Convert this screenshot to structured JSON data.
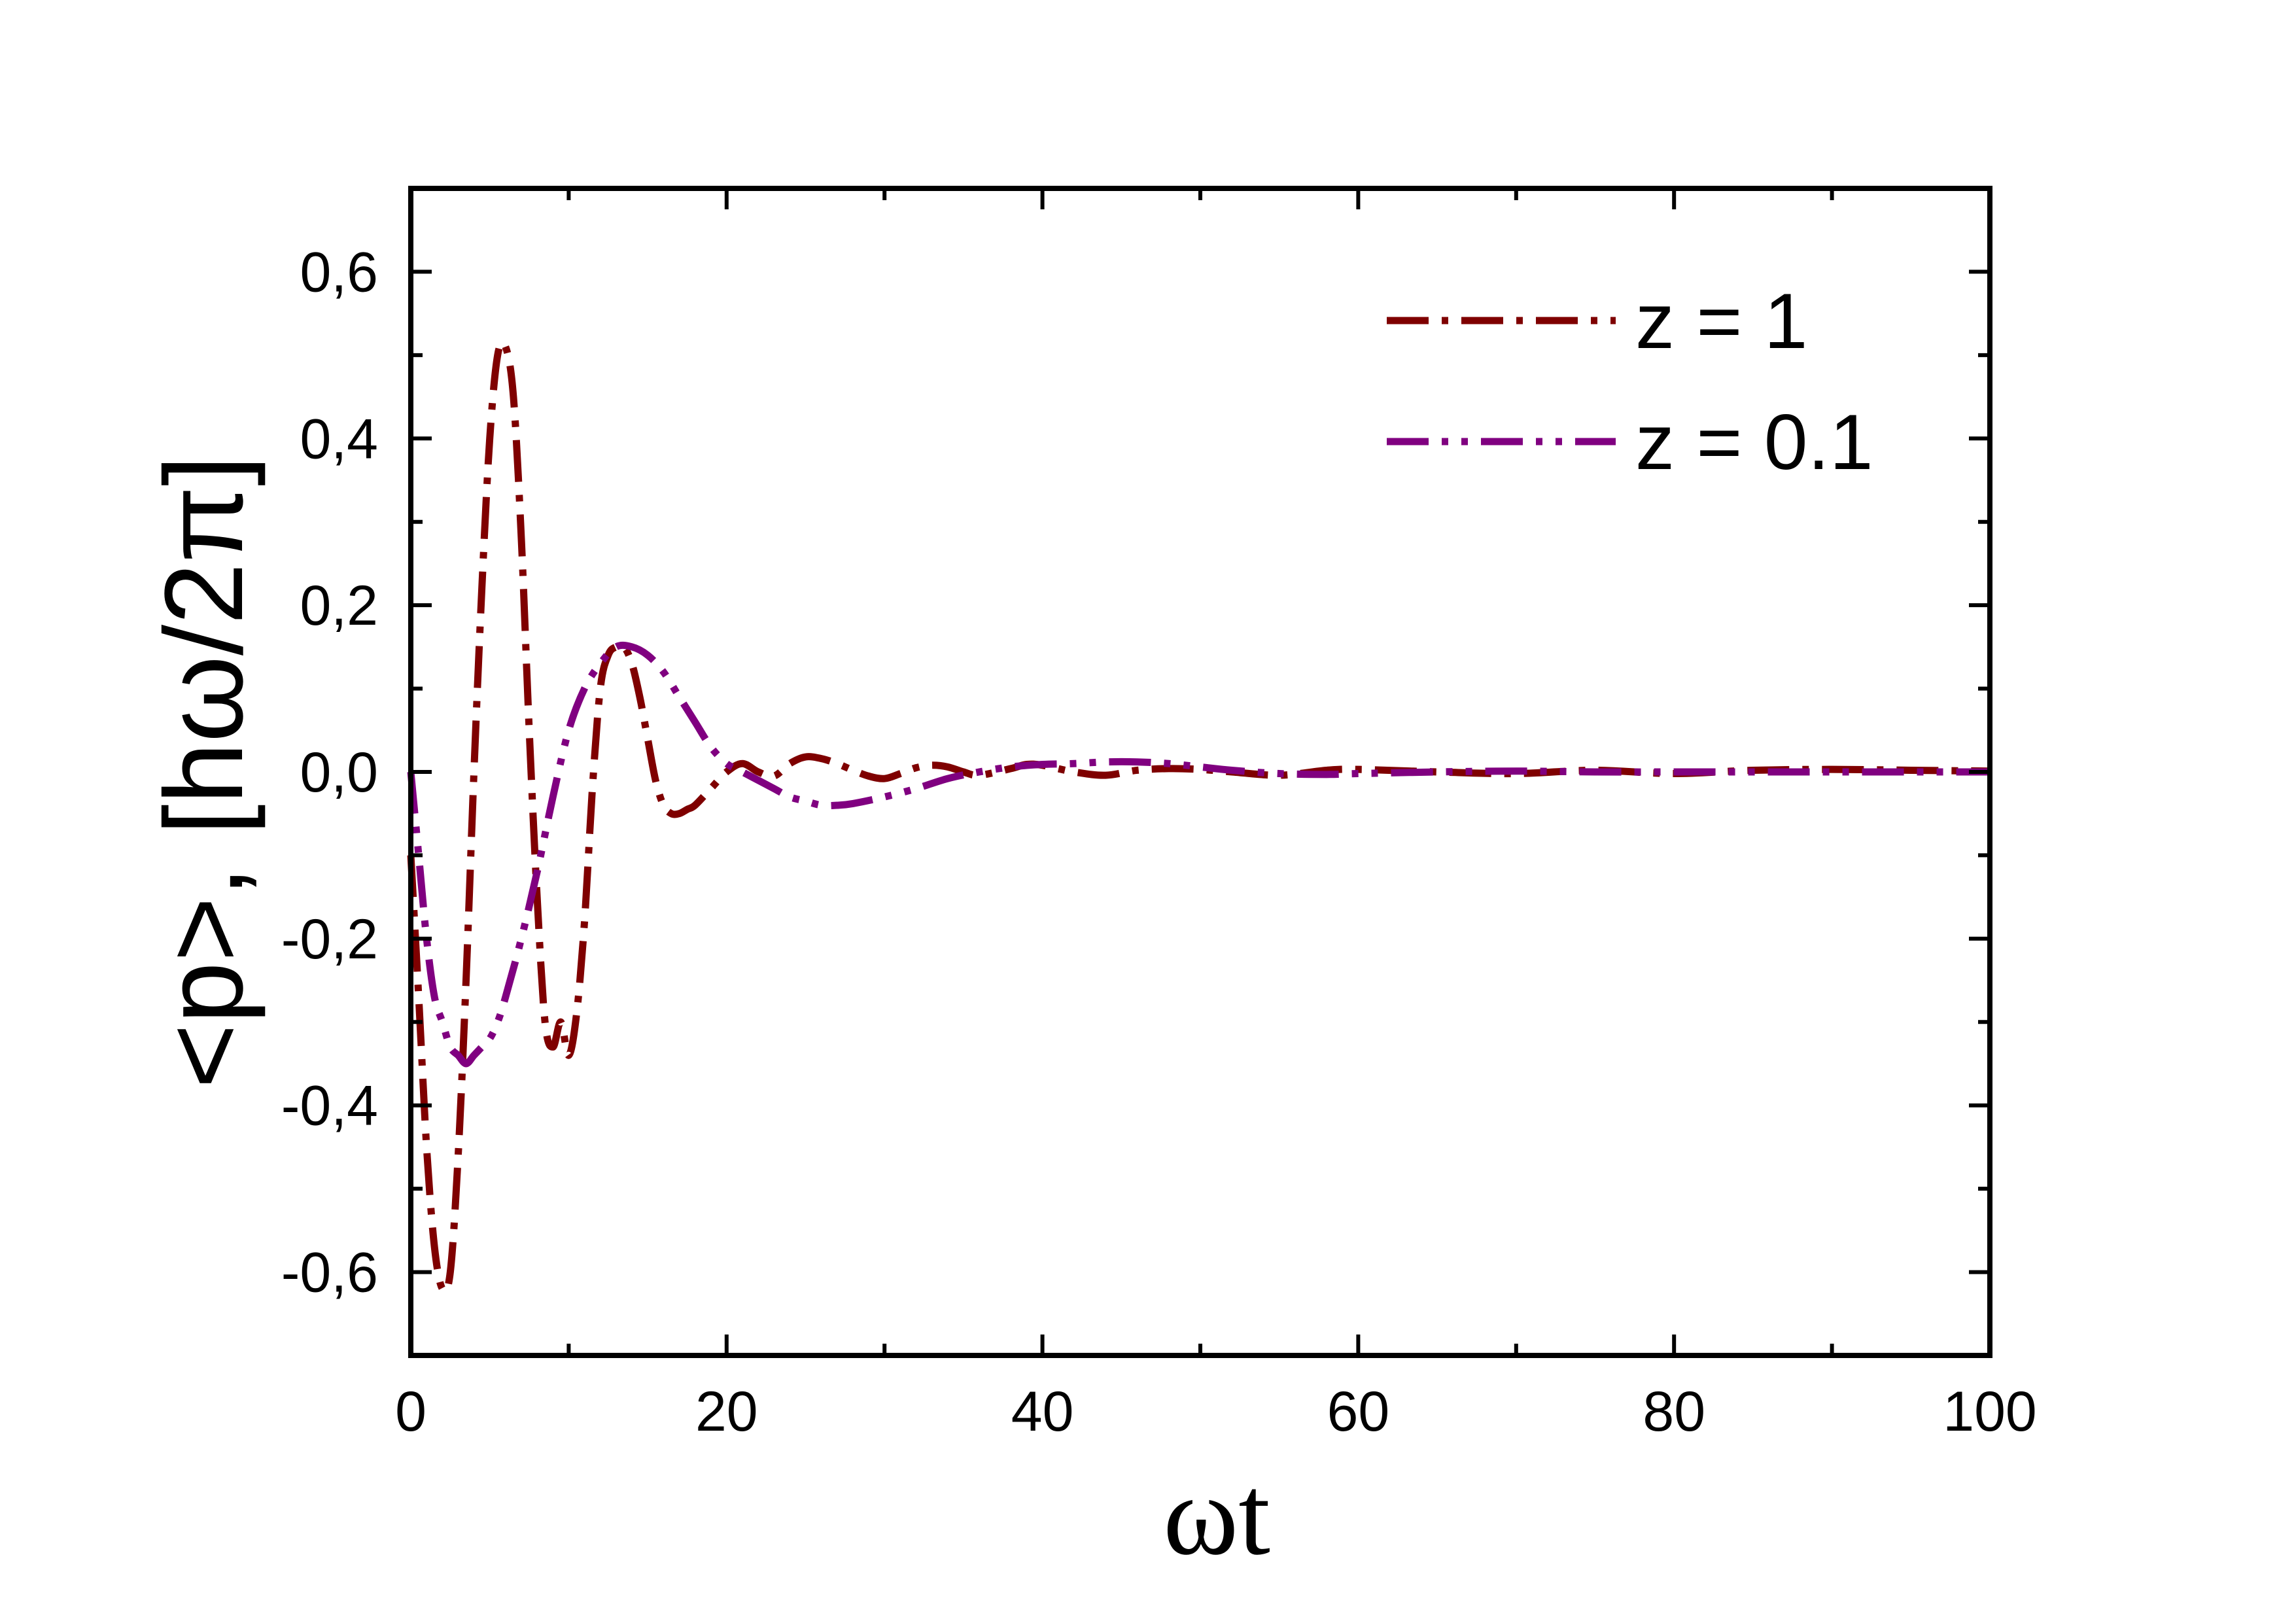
{
  "colors": {
    "series_1": "#7f0000",
    "series_2": "#800080",
    "axes": "#000000",
    "background": "#ffffff"
  },
  "chart_data": {
    "type": "line",
    "title": "",
    "xlabel": "ωt",
    "ylabel": "<p>, [hω/2π]",
    "xlim": [
      0,
      100
    ],
    "ylim": [
      -0.7,
      0.7
    ],
    "x_ticks": [
      0,
      20,
      40,
      60,
      80,
      100
    ],
    "x_tick_labels": [
      "0",
      "20",
      "40",
      "60",
      "80",
      "100"
    ],
    "y_ticks": [
      -0.6,
      -0.4,
      -0.2,
      0.0,
      0.2,
      0.4,
      0.6
    ],
    "y_tick_labels": [
      "-0,6",
      "-0,4",
      "-0,2",
      "0,0",
      "0,2",
      "0,4",
      "0,6"
    ],
    "grid": false,
    "legend_position": "top-right",
    "series": [
      {
        "name": "z = 1",
        "line_style": "dash-dot",
        "color": "#7f0000",
        "x": [
          0,
          0.5,
          1,
          1.5,
          2,
          2.5,
          3,
          3.5,
          4,
          4.5,
          5,
          5.5,
          6,
          6.5,
          7,
          7.5,
          8,
          8.5,
          9,
          9.5,
          10,
          10.5,
          11,
          11.5,
          12,
          12.5,
          13,
          13.5,
          14,
          14.5,
          15,
          15.5,
          16,
          16.5,
          17,
          17.5,
          18,
          19,
          20,
          21,
          22,
          23,
          24,
          25,
          26,
          27,
          28,
          29,
          30,
          31,
          32,
          33,
          34,
          35,
          36,
          38,
          39,
          40,
          42,
          44,
          46,
          48,
          50,
          52,
          55,
          58,
          60,
          65,
          70,
          75,
          80,
          85,
          90,
          95,
          100
        ],
        "y": [
          -0.1,
          -0.27,
          -0.45,
          -0.57,
          -0.62,
          -0.6,
          -0.46,
          -0.25,
          0.0,
          0.22,
          0.4,
          0.5,
          0.51,
          0.45,
          0.28,
          0.05,
          -0.15,
          -0.3,
          -0.33,
          -0.3,
          -0.34,
          -0.29,
          -0.18,
          -0.02,
          0.1,
          0.14,
          0.15,
          0.15,
          0.13,
          0.09,
          0.04,
          -0.01,
          -0.04,
          -0.05,
          -0.05,
          -0.045,
          -0.04,
          -0.02,
          0.0,
          0.01,
          0.0,
          -0.005,
          0.01,
          0.018,
          0.016,
          0.01,
          0.002,
          -0.005,
          -0.008,
          -0.002,
          0.005,
          0.008,
          0.006,
          0.0,
          -0.004,
          0.004,
          0.009,
          0.008,
          0.0,
          -0.004,
          0.002,
          0.004,
          0.003,
          0.0,
          -0.004,
          0.002,
          0.003,
          0.0,
          -0.002,
          0.002,
          -0.002,
          0.002,
          0.003,
          0.002,
          0.001
        ]
      },
      {
        "name": "z = 0.1",
        "line_style": "dash-dot-dot",
        "color": "#800080",
        "x": [
          0,
          0.5,
          1,
          1.5,
          2,
          2.5,
          3,
          3.5,
          4,
          4.5,
          5,
          5.5,
          6,
          7,
          8,
          9,
          10,
          11,
          12,
          13,
          14,
          15,
          16,
          17,
          18,
          19,
          20,
          21,
          22,
          23,
          24,
          25,
          26,
          27,
          28,
          30,
          32,
          34,
          36,
          38,
          40,
          42,
          44,
          46,
          48,
          50,
          52,
          55,
          58,
          60,
          65,
          70,
          75,
          80,
          85,
          90,
          95,
          100
        ],
        "y": [
          0.0,
          -0.1,
          -0.2,
          -0.27,
          -0.3,
          -0.33,
          -0.34,
          -0.35,
          -0.34,
          -0.33,
          -0.32,
          -0.3,
          -0.27,
          -0.2,
          -0.12,
          -0.03,
          0.05,
          0.1,
          0.13,
          0.15,
          0.15,
          0.14,
          0.12,
          0.09,
          0.06,
          0.03,
          0.01,
          0.0,
          -0.01,
          -0.02,
          -0.03,
          -0.035,
          -0.04,
          -0.04,
          -0.038,
          -0.03,
          -0.02,
          -0.008,
          0.0,
          0.006,
          0.009,
          0.01,
          0.012,
          0.012,
          0.01,
          0.006,
          0.002,
          -0.002,
          -0.003,
          -0.002,
          0.0,
          0.001,
          0.0,
          0.0,
          0.0,
          0.0,
          0.0,
          0.0
        ]
      }
    ]
  }
}
